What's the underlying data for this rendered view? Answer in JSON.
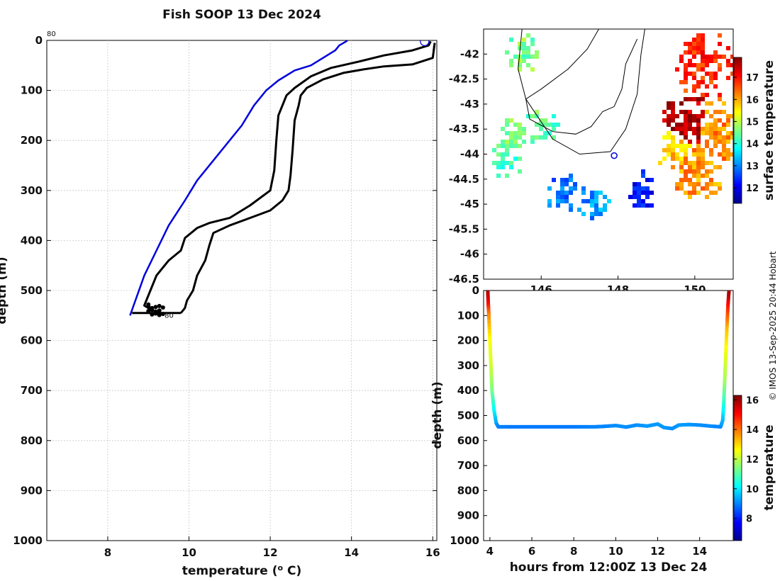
{
  "chart_data": [
    {
      "type": "line",
      "title": "Fish SOOP 13 Dec 2024",
      "xlabel_prefix": "temperature (",
      "xlabel_sup": "o",
      "xlabel_suffix": " C)",
      "ylabel": "depth (m)",
      "xlim": [
        6.5,
        16.1
      ],
      "ylim": [
        0,
        1000
      ],
      "y_reversed": true,
      "grid": true,
      "x_ticks": [
        8,
        10,
        12,
        14,
        16
      ],
      "y_ticks": [
        0,
        100,
        200,
        300,
        400,
        500,
        600,
        700,
        800,
        900,
        1000
      ],
      "annotations": [
        {
          "text": "80",
          "x": 6.5,
          "y": -20
        },
        {
          "text": "80",
          "x": 9.4,
          "y": 550
        }
      ],
      "series": [
        {
          "name": "reference profile (blue)",
          "color": "#0000dd",
          "points": [
            [
              13.9,
              0
            ],
            [
              13.85,
              3
            ],
            [
              13.7,
              10
            ],
            [
              13.6,
              20
            ],
            [
              13.4,
              30
            ],
            [
              13.0,
              50
            ],
            [
              12.6,
              60
            ],
            [
              12.2,
              80
            ],
            [
              11.9,
              100
            ],
            [
              11.6,
              130
            ],
            [
              11.3,
              170
            ],
            [
              10.7,
              230
            ],
            [
              10.2,
              280
            ],
            [
              9.9,
              320
            ],
            [
              9.5,
              370
            ],
            [
              9.2,
              420
            ],
            [
              8.9,
              470
            ],
            [
              8.55,
              550
            ]
          ]
        },
        {
          "name": "cold bound (black)",
          "color": "#000000",
          "points": [
            [
              15.95,
              2
            ],
            [
              15.9,
              10
            ],
            [
              15.5,
              20
            ],
            [
              14.8,
              30
            ],
            [
              14.2,
              42
            ],
            [
              13.5,
              55
            ],
            [
              13.0,
              72
            ],
            [
              12.6,
              95
            ],
            [
              12.4,
              110
            ],
            [
              12.3,
              130
            ],
            [
              12.2,
              150
            ],
            [
              12.15,
              200
            ],
            [
              12.1,
              260
            ],
            [
              12.0,
              300
            ],
            [
              11.5,
              330
            ],
            [
              11.0,
              355
            ],
            [
              10.5,
              365
            ],
            [
              10.2,
              375
            ],
            [
              9.9,
              395
            ],
            [
              9.8,
              420
            ],
            [
              9.5,
              440
            ],
            [
              9.2,
              470
            ],
            [
              9.0,
              510
            ],
            [
              8.9,
              530
            ],
            [
              9.1,
              540
            ]
          ]
        },
        {
          "name": "warm bound (black)",
          "color": "#000000",
          "points": [
            [
              16.05,
              5
            ],
            [
              16.0,
              35
            ],
            [
              15.5,
              48
            ],
            [
              14.8,
              52
            ],
            [
              14.3,
              58
            ],
            [
              13.8,
              65
            ],
            [
              13.3,
              78
            ],
            [
              12.9,
              95
            ],
            [
              12.75,
              110
            ],
            [
              12.7,
              130
            ],
            [
              12.6,
              160
            ],
            [
              12.55,
              220
            ],
            [
              12.5,
              270
            ],
            [
              12.45,
              300
            ],
            [
              12.3,
              320
            ],
            [
              12.0,
              340
            ],
            [
              11.5,
              355
            ],
            [
              11.0,
              370
            ],
            [
              10.6,
              385
            ],
            [
              10.5,
              410
            ],
            [
              10.4,
              440
            ],
            [
              10.2,
              470
            ],
            [
              10.1,
              500
            ],
            [
              9.95,
              520
            ],
            [
              9.9,
              535
            ],
            [
              9.8,
              545
            ]
          ]
        },
        {
          "name": "bottom trace (black)",
          "color": "#000000",
          "points": [
            [
              8.6,
              545
            ],
            [
              9.8,
              545
            ]
          ]
        }
      ],
      "start_marker": {
        "x": 15.8,
        "y": 2,
        "color": "#0000dd"
      }
    },
    {
      "type": "heatmap",
      "title": "",
      "colorbar_label": "surface temperature",
      "xlim": [
        144.5,
        151.0
      ],
      "ylim": [
        -46.5,
        -41.5
      ],
      "x_ticks": [
        146,
        148,
        150
      ],
      "y_ticks": [
        -42,
        -42.5,
        -43,
        -43.5,
        -44,
        -44.5,
        -45,
        -45.5,
        -46,
        -46.5
      ],
      "colorbar_ticks": [
        12,
        13,
        14,
        15,
        16,
        17
      ],
      "colorbar_range": [
        11.3,
        17.9
      ],
      "vessel_position": {
        "lon": 147.9,
        "lat": -44.03
      },
      "sst_patches": [
        {
          "lon": 150.2,
          "lat": -42.2,
          "temp": 16.8
        },
        {
          "lon": 149.8,
          "lat": -43.4,
          "temp": 17.6
        },
        {
          "lon": 150.5,
          "lat": -43.5,
          "temp": 16.2
        },
        {
          "lon": 145.2,
          "lat": -43.5,
          "temp": 14.6
        },
        {
          "lon": 146.0,
          "lat": -43.4,
          "temp": 14.4
        },
        {
          "lon": 145.0,
          "lat": -44.1,
          "temp": 14.2
        },
        {
          "lon": 149.4,
          "lat": -43.9,
          "temp": 15.8
        },
        {
          "lon": 150.0,
          "lat": -44.2,
          "temp": 16.1
        },
        {
          "lon": 146.5,
          "lat": -44.7,
          "temp": 12.9
        },
        {
          "lon": 148.5,
          "lat": -44.7,
          "temp": 12.2
        },
        {
          "lon": 147.3,
          "lat": -44.9,
          "temp": 13.1
        },
        {
          "lon": 145.5,
          "lat": -41.9,
          "temp": 14.6
        }
      ]
    },
    {
      "type": "scatter",
      "xlabel": "hours from 12:00Z 13 Dec 24",
      "ylabel": "depth (m)",
      "colorbar_label": "temperature",
      "xlim": [
        3.7,
        15.6
      ],
      "ylim": [
        0,
        1000
      ],
      "y_reversed": true,
      "x_ticks": [
        4,
        6,
        8,
        10,
        12,
        14
      ],
      "y_ticks": [
        0,
        100,
        200,
        300,
        400,
        500,
        600,
        700,
        800,
        900,
        1000
      ],
      "colorbar_ticks": [
        8,
        10,
        12,
        14,
        16
      ],
      "colorbar_range": [
        6.5,
        16.3
      ],
      "track": [
        {
          "hours": 3.9,
          "depth": 0,
          "temp": 16.0
        },
        {
          "hours": 3.92,
          "depth": 50,
          "temp": 15.2
        },
        {
          "hours": 3.95,
          "depth": 100,
          "temp": 13.8
        },
        {
          "hours": 4.0,
          "depth": 200,
          "temp": 12.6
        },
        {
          "hours": 4.05,
          "depth": 300,
          "temp": 12.2
        },
        {
          "hours": 4.1,
          "depth": 400,
          "temp": 11.4
        },
        {
          "hours": 4.2,
          "depth": 480,
          "temp": 10.2
        },
        {
          "hours": 4.3,
          "depth": 530,
          "temp": 9.4
        },
        {
          "hours": 4.4,
          "depth": 545,
          "temp": 9.0
        },
        {
          "hours": 5.0,
          "depth": 545,
          "temp": 8.9
        },
        {
          "hours": 6.0,
          "depth": 545,
          "temp": 8.9
        },
        {
          "hours": 7.0,
          "depth": 545,
          "temp": 8.9
        },
        {
          "hours": 8.0,
          "depth": 545,
          "temp": 8.9
        },
        {
          "hours": 9.0,
          "depth": 545,
          "temp": 9.0
        },
        {
          "hours": 9.5,
          "depth": 543,
          "temp": 9.0
        },
        {
          "hours": 10.0,
          "depth": 540,
          "temp": 9.1
        },
        {
          "hours": 10.5,
          "depth": 546,
          "temp": 9.1
        },
        {
          "hours": 11.0,
          "depth": 538,
          "temp": 9.1
        },
        {
          "hours": 11.5,
          "depth": 542,
          "temp": 9.2
        },
        {
          "hours": 12.0,
          "depth": 534,
          "temp": 9.2
        },
        {
          "hours": 12.3,
          "depth": 548,
          "temp": 9.2
        },
        {
          "hours": 12.7,
          "depth": 552,
          "temp": 9.1
        },
        {
          "hours": 13.0,
          "depth": 538,
          "temp": 9.2
        },
        {
          "hours": 13.5,
          "depth": 536,
          "temp": 9.2
        },
        {
          "hours": 14.0,
          "depth": 538,
          "temp": 9.1
        },
        {
          "hours": 14.5,
          "depth": 542,
          "temp": 9.1
        },
        {
          "hours": 15.0,
          "depth": 545,
          "temp": 9.0
        },
        {
          "hours": 15.1,
          "depth": 520,
          "temp": 9.4
        },
        {
          "hours": 15.15,
          "depth": 450,
          "temp": 10.5
        },
        {
          "hours": 15.2,
          "depth": 350,
          "temp": 11.8
        },
        {
          "hours": 15.25,
          "depth": 250,
          "temp": 12.4
        },
        {
          "hours": 15.3,
          "depth": 150,
          "temp": 13.2
        },
        {
          "hours": 15.35,
          "depth": 60,
          "temp": 14.8
        },
        {
          "hours": 15.4,
          "depth": 0,
          "temp": 16.0
        }
      ]
    }
  ],
  "credit": "© IMOS 13-Sep-2025 20:44 Hobart"
}
